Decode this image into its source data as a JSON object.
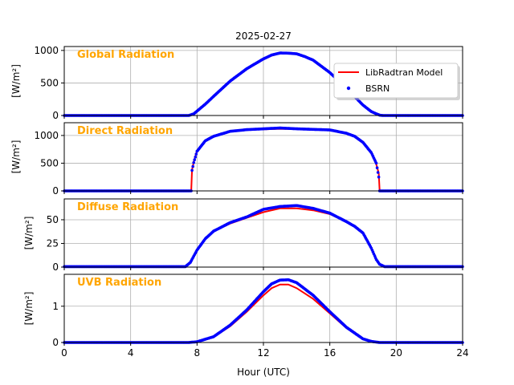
{
  "figure": {
    "title": "2025-02-27",
    "xlabel": "Hour (UTC)",
    "xlim": [
      0,
      24
    ],
    "xticks": [
      0,
      4,
      8,
      12,
      16,
      20,
      24
    ],
    "legend": {
      "placement": "right, first panel",
      "entries": [
        {
          "label": "LibRadtran Model",
          "color": "#ff0000",
          "style": "line"
        },
        {
          "label": "BSRN",
          "color": "#0000ff",
          "style": "dot"
        }
      ]
    },
    "colors": {
      "model": "#ff0000",
      "bsrn": "#0000ff",
      "panel_title": "#ffa500",
      "grid": "#b0b0b0"
    }
  },
  "chart_data": [
    {
      "type": "line",
      "title": "Global Radiation",
      "ylabel": "[W/m²]",
      "ylim": [
        0,
        1060
      ],
      "yticks": [
        0,
        500,
        1000
      ],
      "grid": true,
      "x": [
        0,
        7.5,
        7.8,
        8.5,
        9,
        10,
        11,
        12,
        12.5,
        13,
        13.5,
        14,
        14.5,
        15,
        16,
        17,
        18,
        18.5,
        19,
        19.2,
        24
      ],
      "series": [
        {
          "name": "LibRadtran Model",
          "values": [
            0,
            0,
            20,
            170,
            290,
            520,
            710,
            860,
            920,
            955,
            960,
            945,
            900,
            850,
            660,
            420,
            160,
            60,
            5,
            0,
            0
          ]
        },
        {
          "name": "BSRN",
          "values": [
            0,
            0,
            25,
            175,
            295,
            530,
            720,
            870,
            930,
            960,
            958,
            948,
            905,
            850,
            660,
            420,
            160,
            60,
            5,
            0,
            0
          ]
        }
      ]
    },
    {
      "type": "line",
      "title": "Direct Radiation",
      "ylabel": "[W/m²]",
      "ylim": [
        0,
        1230
      ],
      "yticks": [
        0,
        500,
        1000
      ],
      "grid": true,
      "x": [
        0,
        7.65,
        7.7,
        7.8,
        8,
        8.5,
        9,
        10,
        11,
        12,
        13,
        14,
        15,
        16,
        17,
        17.5,
        18,
        18.5,
        18.8,
        18.95,
        19.0,
        24
      ],
      "series": [
        {
          "name": "LibRadtran Model",
          "values": [
            0,
            0,
            380,
            520,
            720,
            900,
            980,
            1070,
            1100,
            1110,
            1120,
            1115,
            1110,
            1095,
            1040,
            990,
            880,
            680,
            480,
            320,
            0,
            0
          ]
        },
        {
          "name": "BSRN",
          "values": [
            0,
            0,
            370,
            510,
            715,
            905,
            985,
            1075,
            1105,
            1120,
            1135,
            1120,
            1110,
            1100,
            1040,
            985,
            875,
            690,
            500,
            250,
            0,
            0
          ]
        }
      ]
    },
    {
      "type": "line",
      "title": "Diffuse Radiation",
      "ylabel": "[W/m²]",
      "ylim": [
        0,
        72
      ],
      "yticks": [
        0,
        25,
        50
      ],
      "grid": true,
      "x": [
        0,
        7.3,
        7.6,
        8,
        8.5,
        9,
        10,
        11,
        12,
        13,
        14,
        15,
        16,
        17,
        17.5,
        18,
        18.5,
        18.8,
        19,
        19.3,
        24
      ],
      "series": [
        {
          "name": "LibRadtran Model",
          "values": [
            0,
            0,
            5,
            18,
            30,
            38,
            46,
            52,
            58,
            62,
            62,
            60,
            56,
            48,
            43,
            36,
            20,
            8,
            3,
            0,
            0
          ]
        },
        {
          "name": "BSRN",
          "values": [
            0.5,
            0.5,
            5,
            18,
            30,
            38,
            47,
            53,
            61,
            64,
            65,
            62,
            57,
            48,
            43,
            36,
            20,
            8,
            3,
            0.5,
            0.5
          ]
        }
      ]
    },
    {
      "type": "line",
      "title": "UVB Radiation",
      "ylabel": "[W/m²]",
      "ylim": [
        0,
        1.88
      ],
      "yticks": [
        0,
        1
      ],
      "grid": true,
      "x": [
        0,
        7.5,
        8,
        9,
        10,
        11,
        12,
        12.5,
        13,
        13.5,
        14,
        15,
        16,
        17,
        18,
        18.5,
        19,
        24
      ],
      "series": [
        {
          "name": "LibRadtran Model",
          "values": [
            0,
            0,
            0.02,
            0.15,
            0.45,
            0.85,
            1.3,
            1.5,
            1.6,
            1.6,
            1.5,
            1.2,
            0.8,
            0.4,
            0.1,
            0.03,
            0,
            0
          ]
        },
        {
          "name": "BSRN",
          "values": [
            0,
            0,
            0.02,
            0.16,
            0.48,
            0.9,
            1.4,
            1.62,
            1.72,
            1.73,
            1.65,
            1.3,
            0.85,
            0.42,
            0.1,
            0.03,
            0,
            0
          ]
        }
      ]
    }
  ]
}
